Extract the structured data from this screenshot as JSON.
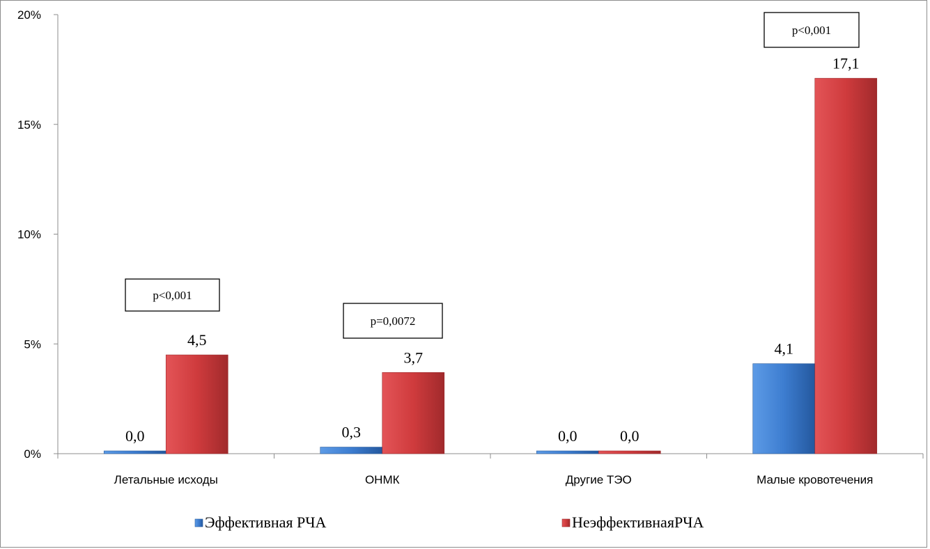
{
  "chart_data": {
    "type": "bar",
    "categories": [
      "Летальные исходы",
      "ОНМК",
      "Другие ТЭО",
      "Малые кровотечения"
    ],
    "series": [
      {
        "name": "Эффективная РЧА",
        "values": [
          0.0,
          0.3,
          0.0,
          4.1
        ],
        "labels": [
          "0,0",
          "0,3",
          "0,0",
          "4,1"
        ],
        "color": "#3a78c9"
      },
      {
        "name": "НеэффективнаяРЧА",
        "values": [
          4.5,
          3.7,
          0.0,
          17.1
        ],
        "labels": [
          "4,5",
          "3,7",
          "0,0",
          "17,1"
        ],
        "color": "#c8373a"
      }
    ],
    "ylim": [
      0,
      20
    ],
    "yticks": [
      "0%",
      "5%",
      "10%",
      "15%",
      "20%"
    ],
    "annotations": [
      {
        "category": "Летальные исходы",
        "text": "p<0,001"
      },
      {
        "category": "ОНМК",
        "text": "p=0,0072"
      },
      {
        "category": "Малые кровотечения",
        "text": "p<0,001"
      }
    ],
    "grid": false,
    "legend_position": "bottom"
  }
}
